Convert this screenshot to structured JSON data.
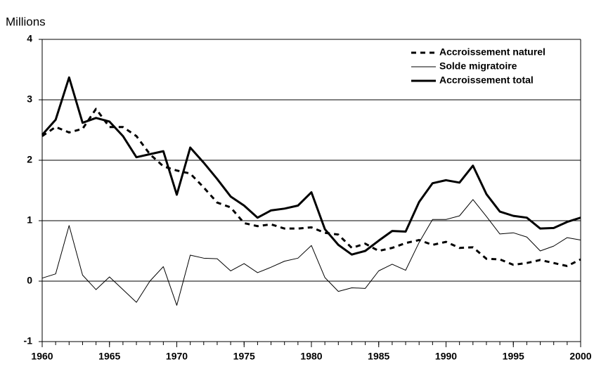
{
  "chart_data": {
    "type": "line",
    "y_label": "Millions",
    "x": [
      1960,
      1961,
      1962,
      1963,
      1964,
      1965,
      1966,
      1967,
      1968,
      1969,
      1970,
      1971,
      1972,
      1973,
      1974,
      1975,
      1976,
      1977,
      1978,
      1979,
      1980,
      1981,
      1982,
      1983,
      1984,
      1985,
      1986,
      1987,
      1988,
      1989,
      1990,
      1991,
      1992,
      1993,
      1994,
      1995,
      1996,
      1997,
      1998,
      1999,
      2000
    ],
    "xlim": [
      1960,
      2000
    ],
    "xticks": [
      1960,
      1965,
      1970,
      1975,
      1980,
      1985,
      1990,
      1995,
      2000
    ],
    "ylim": [
      -1,
      4
    ],
    "yticks": [
      -1,
      0,
      1,
      2,
      3,
      4
    ],
    "grid": true,
    "legend": "upper right",
    "series": [
      {
        "name": "Accroissement naturel",
        "color": "#000000",
        "line_style": "dashed",
        "values": [
          2.4,
          2.55,
          2.46,
          2.52,
          2.85,
          2.55,
          2.55,
          2.4,
          2.1,
          1.9,
          1.83,
          1.78,
          1.55,
          1.3,
          1.22,
          0.96,
          0.91,
          0.94,
          0.87,
          0.87,
          0.89,
          0.8,
          0.77,
          0.55,
          0.62,
          0.5,
          0.55,
          0.63,
          0.68,
          0.6,
          0.65,
          0.55,
          0.56,
          0.37,
          0.36,
          0.27,
          0.3,
          0.35,
          0.3,
          0.25,
          0.36
        ]
      },
      {
        "name": "Solde migratoire",
        "color": "#000000",
        "line_style": "thin",
        "values": [
          0.05,
          0.12,
          0.92,
          0.1,
          -0.14,
          0.07,
          -0.14,
          -0.35,
          0.0,
          0.24,
          -0.4,
          0.43,
          0.38,
          0.37,
          0.17,
          0.29,
          0.14,
          0.23,
          0.33,
          0.38,
          0.59,
          0.06,
          -0.17,
          -0.11,
          -0.12,
          0.17,
          0.28,
          0.18,
          0.64,
          1.02,
          1.02,
          1.08,
          1.35,
          1.07,
          0.78,
          0.8,
          0.73,
          0.5,
          0.58,
          0.72,
          0.68
        ]
      },
      {
        "name": "Accroissement total",
        "color": "#000000",
        "line_style": "thick",
        "values": [
          2.42,
          2.67,
          3.37,
          2.62,
          2.7,
          2.64,
          2.4,
          2.05,
          2.1,
          2.15,
          1.43,
          2.21,
          1.96,
          1.69,
          1.4,
          1.25,
          1.05,
          1.17,
          1.2,
          1.25,
          1.47,
          0.86,
          0.6,
          0.44,
          0.5,
          0.67,
          0.83,
          0.82,
          1.31,
          1.62,
          1.67,
          1.63,
          1.91,
          1.44,
          1.15,
          1.08,
          1.05,
          0.87,
          0.88,
          0.98,
          1.05
        ]
      }
    ]
  }
}
